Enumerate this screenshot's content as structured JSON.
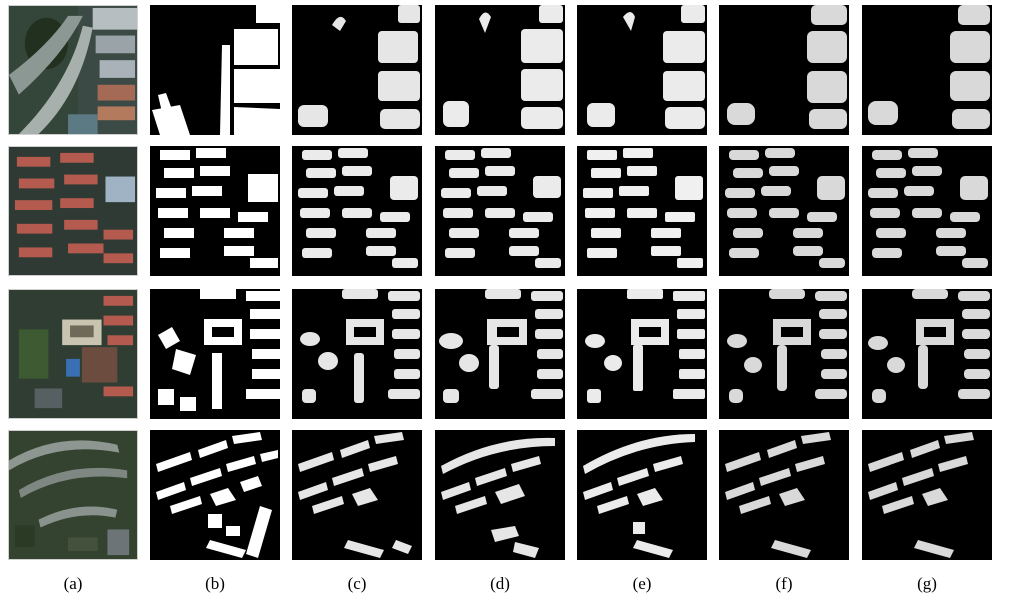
{
  "figure": {
    "column_labels": [
      "(a)",
      "(b)",
      "(c)",
      "(d)",
      "(e)",
      "(f)",
      "(g)"
    ],
    "rows": [
      "row-1",
      "row-2",
      "row-3",
      "row-4"
    ],
    "column_contents": [
      "satellite-image",
      "ground-truth-mask",
      "predicted-mask",
      "predicted-mask",
      "predicted-mask",
      "predicted-mask",
      "predicted-mask"
    ],
    "colors": {
      "mask_background": "#000000",
      "mask_building": "#ffffff",
      "photo_dark": "#2b3a2e",
      "photo_roof_red": "#b45a4e",
      "photo_roof_grey": "#9aa3a8",
      "photo_vegetation": "#3e5a32"
    }
  }
}
